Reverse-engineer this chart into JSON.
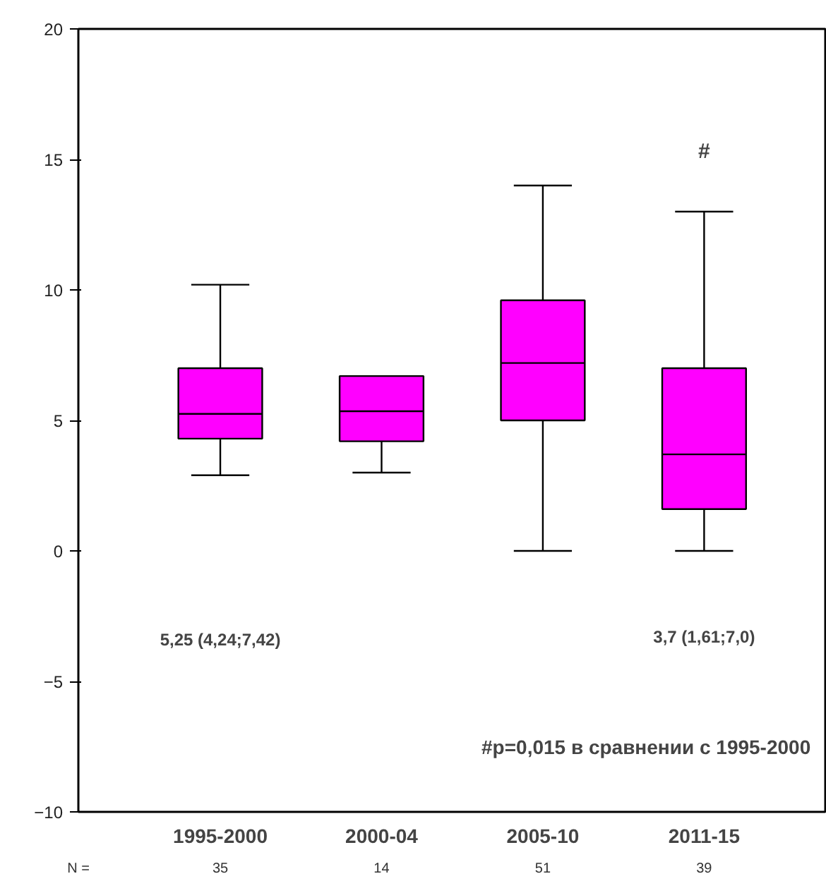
{
  "chart_data": {
    "type": "box",
    "categories": [
      "1995-2000",
      "2000-04",
      "2005-10",
      "2011-15"
    ],
    "color": "#ff00ff",
    "boxes": [
      {
        "low": 2.9,
        "q1": 4.3,
        "median": 5.25,
        "q3": 7.0,
        "high": 10.2
      },
      {
        "low": 3.0,
        "q1": 4.2,
        "median": 5.35,
        "q3": 6.7,
        "high": 6.7
      },
      {
        "low": 0,
        "q1": 5.0,
        "median": 7.2,
        "q3": 9.6,
        "high": 14.0
      },
      {
        "low": 0,
        "q1": 1.6,
        "median": 3.7,
        "q3": 7.0,
        "high": 13.0
      }
    ],
    "ylim": [
      -10,
      20
    ],
    "yticks": [
      -10,
      -5,
      0,
      5,
      10,
      15,
      20
    ],
    "grid": false,
    "annotations": [
      "#",
      "5,25 (4,24;7,42)",
      "3,7 (1,61;7,0)",
      "#p=0,015 в сравнении с 1995-2000",
      "N =",
      "35",
      "14",
      "51",
      "39"
    ]
  }
}
